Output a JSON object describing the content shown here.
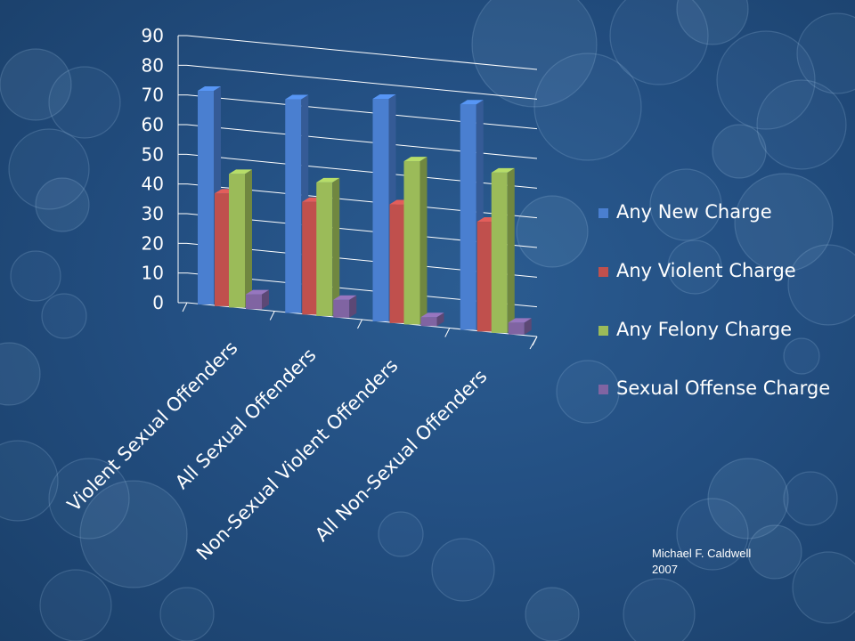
{
  "chart_data": {
    "type": "bar",
    "categories": [
      "Violent Sexual Offenders",
      "All Sexual Offenders",
      "Non-Sexual Violent Offenders",
      "All Non-Sexual Offenders"
    ],
    "series": [
      {
        "name": "Any New Charge",
        "values": [
          72,
          72,
          75,
          76
        ],
        "color": "#4a7fd0"
      },
      {
        "name": "Any Violent Charge",
        "values": [
          38,
          38,
          40,
          37
        ],
        "color": "#c0504d"
      },
      {
        "name": "Any Felony Charge",
        "values": [
          45,
          45,
          55,
          54
        ],
        "color": "#9bbb59"
      },
      {
        "name": "Sexual Offense Charge",
        "values": [
          5,
          6,
          3,
          4
        ],
        "color": "#8064a2"
      }
    ],
    "ylim": [
      0,
      90
    ],
    "yticks": [
      "0",
      "10",
      "20",
      "30",
      "40",
      "50",
      "60",
      "70",
      "80",
      "90"
    ],
    "grid": true,
    "legend_position": "right",
    "title": "",
    "xlabel": "",
    "ylabel": ""
  },
  "source": {
    "line1": "Michael F. Caldwell",
    "line2": "2007"
  }
}
